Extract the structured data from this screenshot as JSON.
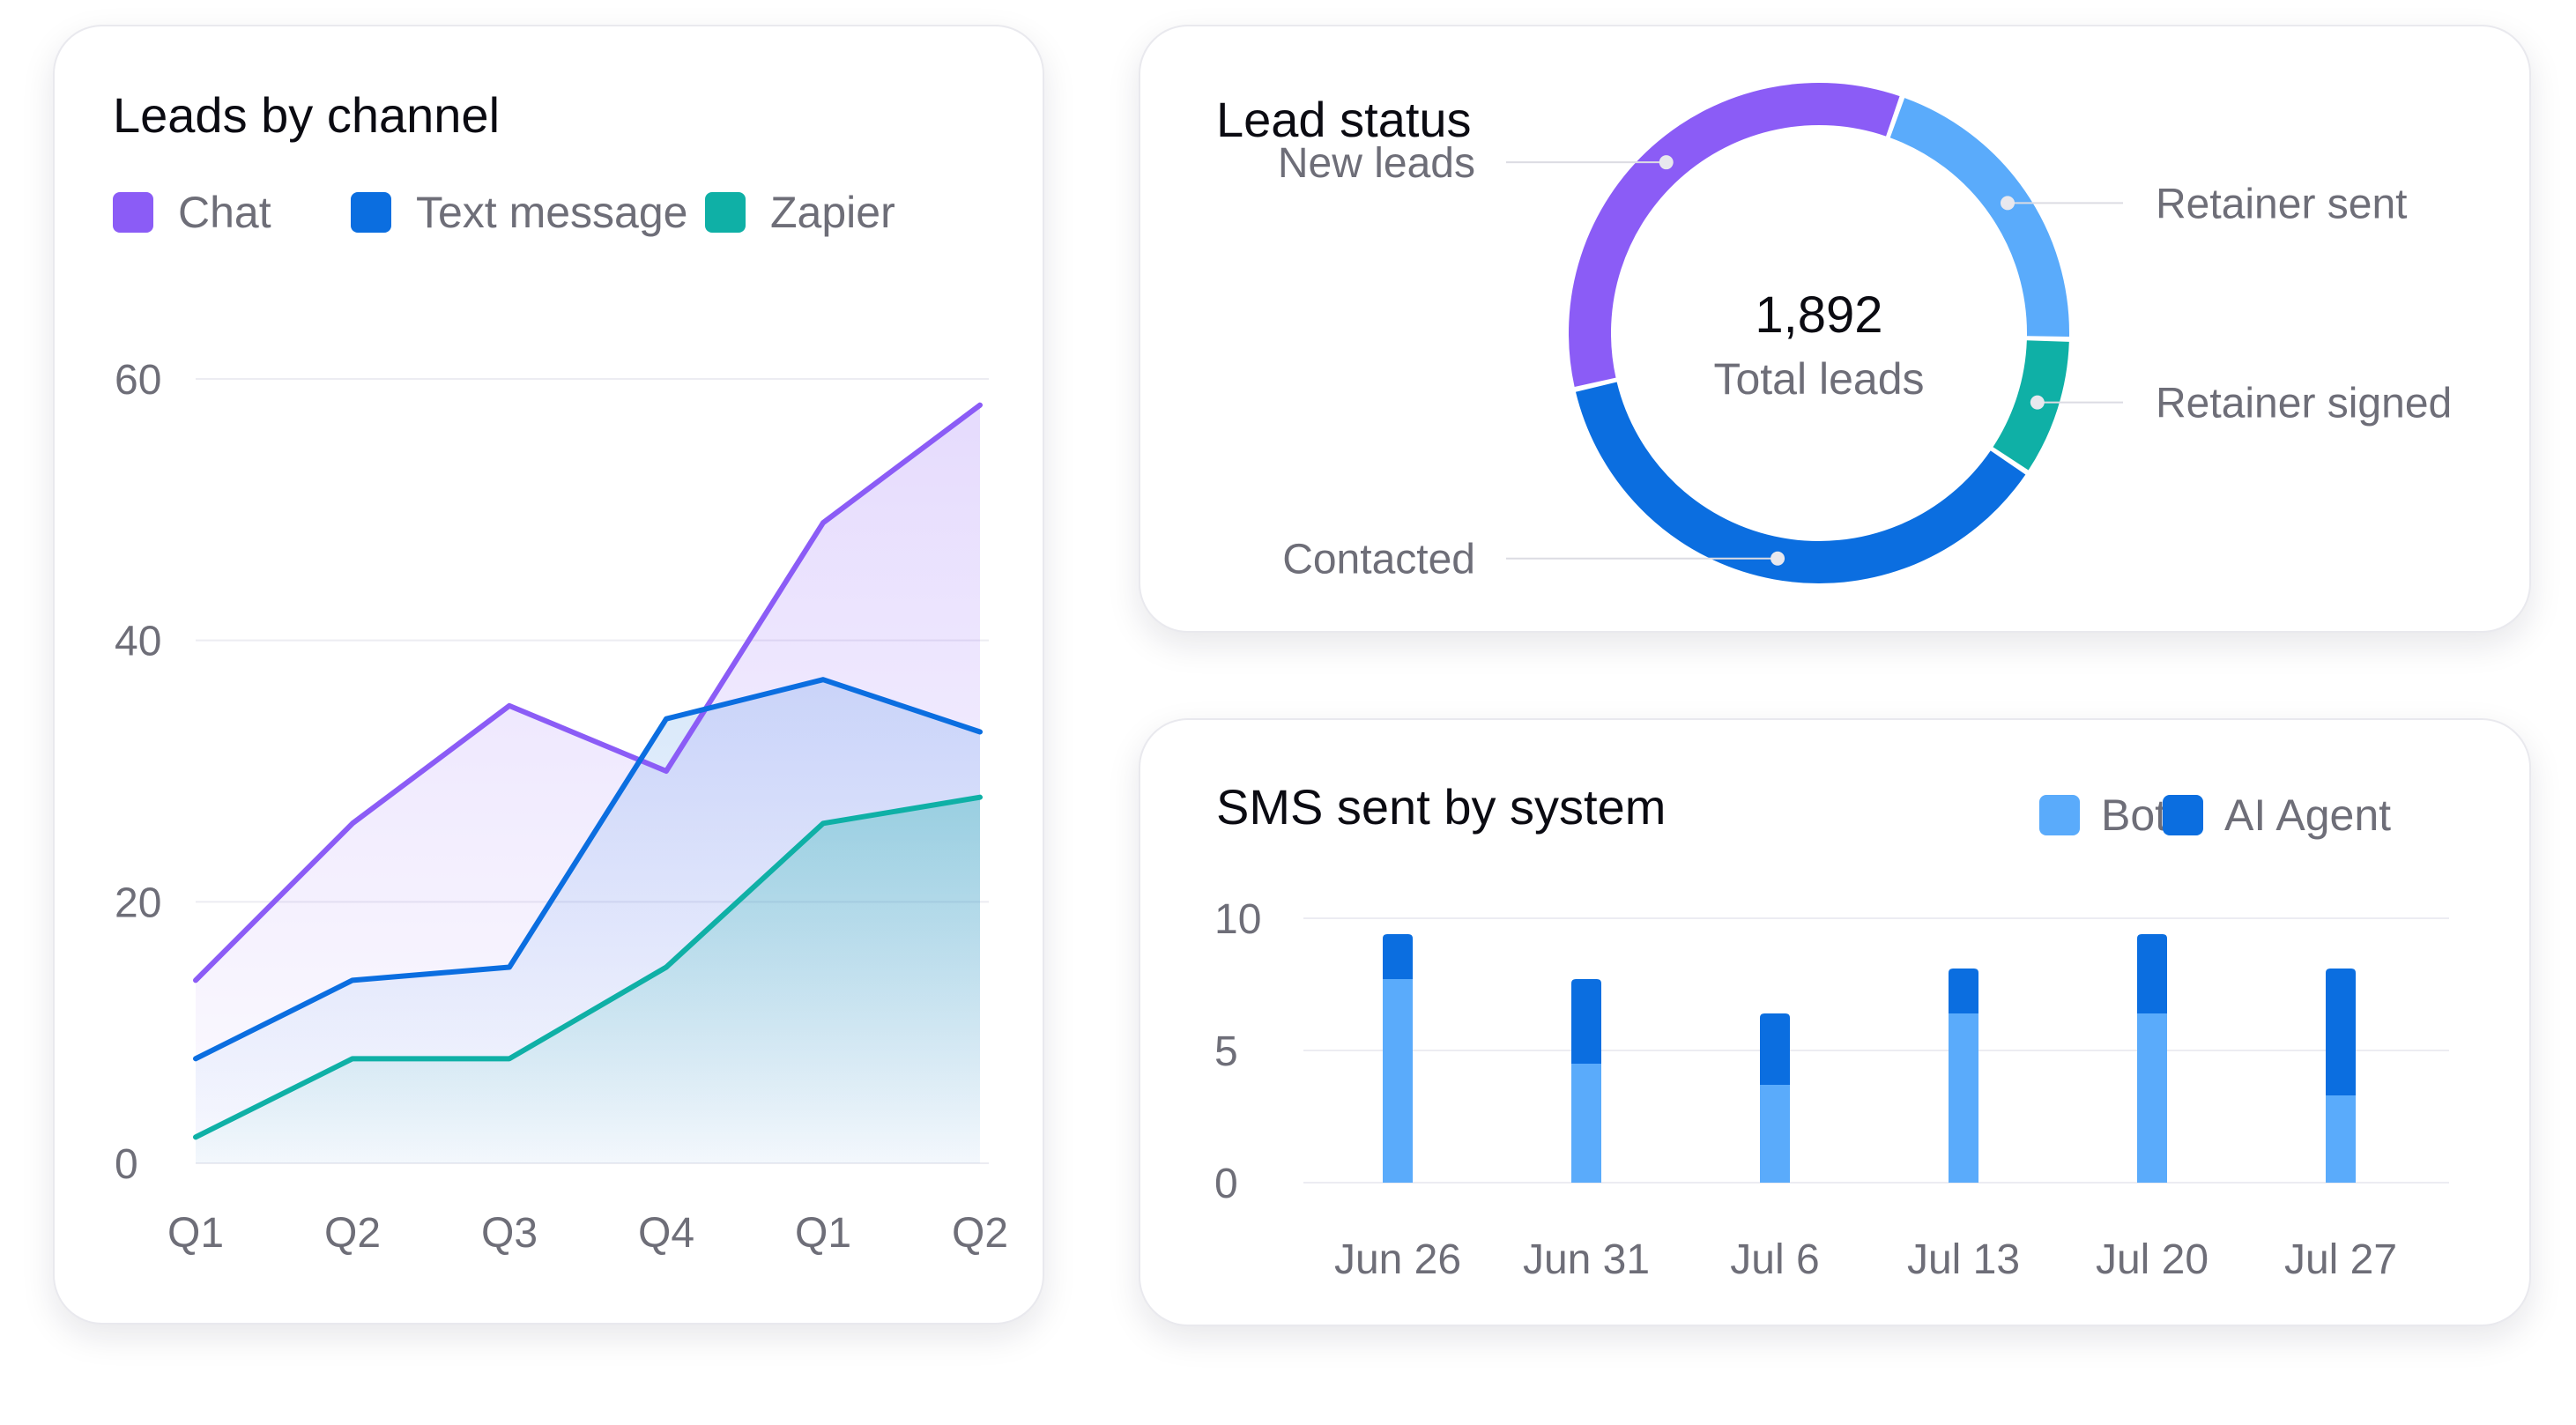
{
  "leads_card": {
    "title": "Leads by channel",
    "legend": [
      {
        "label": "Chat",
        "color": "#8b5cf6"
      },
      {
        "label": "Text message",
        "color": "#0b6ee0"
      },
      {
        "label": "Zapier",
        "color": "#0fb0a6"
      }
    ]
  },
  "status_card": {
    "title": "Lead status",
    "total_value": "1,892",
    "total_label": "Total leads"
  },
  "sms_card": {
    "title": "SMS sent by system",
    "legend": [
      {
        "label": "Bot",
        "color": "#5aabfb"
      },
      {
        "label": "AI Agent",
        "color": "#0b6ee0"
      }
    ]
  },
  "chart_data": [
    {
      "type": "area",
      "title": "Leads by channel",
      "categories": [
        "Q1",
        "Q2",
        "Q3",
        "Q4",
        "Q1",
        "Q2"
      ],
      "ylim": [
        0,
        60
      ],
      "yticks": [
        0,
        20,
        40,
        60
      ],
      "grid": true,
      "legend_position": "top",
      "series": [
        {
          "name": "Chat",
          "color": "#8b5cf6",
          "values": [
            14,
            26,
            35,
            30,
            49,
            58
          ]
        },
        {
          "name": "Text message",
          "color": "#0b6ee0",
          "values": [
            8,
            14,
            15,
            34,
            37,
            33
          ]
        },
        {
          "name": "Zapier",
          "color": "#0fb0a6",
          "values": [
            2,
            8,
            8,
            15,
            26,
            28
          ]
        }
      ]
    },
    {
      "type": "pie",
      "title": "Lead status",
      "donut": true,
      "slices": [
        {
          "label": "New leads",
          "color": "#8b5cf6",
          "value": 34
        },
        {
          "label": "Retainer sent",
          "color": "#5aabfb",
          "value": 20
        },
        {
          "label": "Retainer signed",
          "color": "#0fb0a6",
          "value": 9
        },
        {
          "label": "Contacted",
          "color": "#0b6ee0",
          "value": 37
        }
      ]
    },
    {
      "type": "bar",
      "stacked": true,
      "title": "SMS sent by system",
      "categories": [
        "Jun 26",
        "Jun 31",
        "Jul 6",
        "Jul 13",
        "Jul 20",
        "Jul 27"
      ],
      "ylim": [
        0,
        10
      ],
      "yticks": [
        0,
        5,
        10
      ],
      "grid": true,
      "legend_position": "top-right",
      "series": [
        {
          "name": "Bot",
          "color": "#5aabfb",
          "values": [
            7.7,
            4.5,
            3.7,
            6.4,
            6.4,
            3.3
          ]
        },
        {
          "name": "AI Agent",
          "color": "#0b6ee0",
          "values": [
            1.7,
            3.2,
            2.7,
            1.7,
            3.0,
            4.8
          ]
        }
      ]
    }
  ]
}
